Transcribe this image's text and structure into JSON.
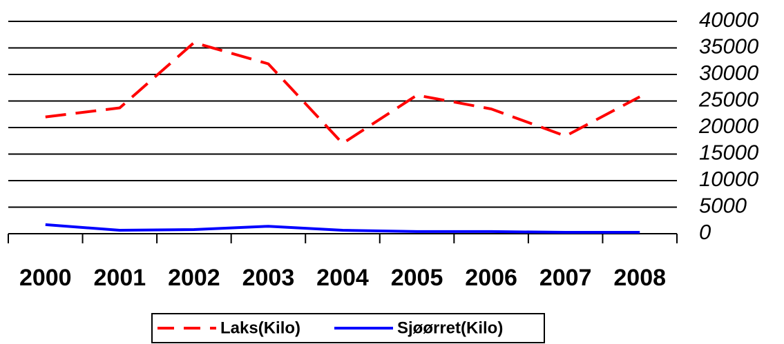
{
  "chart_data": {
    "type": "line",
    "categories": [
      "2000",
      "2001",
      "2002",
      "2003",
      "2004",
      "2005",
      "2006",
      "2007",
      "2008"
    ],
    "series": [
      {
        "name": "Laks(Kilo)",
        "color": "#ff0000",
        "dashed": true,
        "values": [
          22000,
          23700,
          36000,
          32000,
          17000,
          26100,
          23500,
          18400,
          25800
        ]
      },
      {
        "name": "Sjøørret(Kilo)",
        "color": "#0000ff",
        "dashed": false,
        "values": [
          1700,
          650,
          780,
          1400,
          650,
          400,
          400,
          260,
          260
        ]
      }
    ],
    "ylim": [
      0,
      40000
    ],
    "yticks": [
      0,
      5000,
      10000,
      15000,
      20000,
      25000,
      30000,
      35000,
      40000
    ],
    "grid": true
  }
}
